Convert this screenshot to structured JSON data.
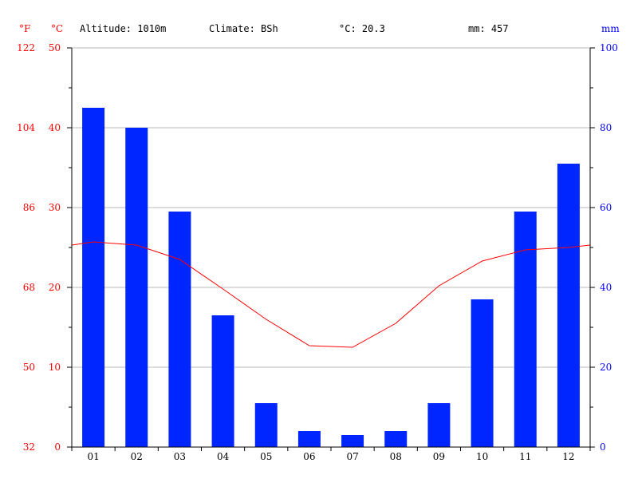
{
  "header": {
    "altitude": "Altitude: 1010m",
    "climate": "Climate: BSh",
    "mean_temp": "°C: 20.3",
    "precip": "mm: 457"
  },
  "units": {
    "fahrenheit": "°F",
    "celsius": "°C",
    "mm": "mm"
  },
  "colors": {
    "temp": "#ff0000",
    "precip": "#0000ff",
    "bar": "#0026ff",
    "grid": "#bbbbbb",
    "axis": "#000000"
  },
  "chart_data": {
    "type": "bar",
    "categories": [
      "01",
      "02",
      "03",
      "04",
      "05",
      "06",
      "07",
      "08",
      "09",
      "10",
      "11",
      "12"
    ],
    "series": [
      {
        "axis": "right",
        "type": "bar",
        "values": [
          85,
          80,
          59,
          33,
          11,
          4,
          3,
          4,
          11,
          37,
          59,
          71
        ]
      },
      {
        "axis": "left",
        "type": "line",
        "values": [
          25.7,
          25.3,
          23.5,
          19.8,
          16.0,
          12.7,
          12.5,
          15.5,
          20.2,
          23.3,
          24.7,
          25.0
        ]
      }
    ],
    "temperature_line_edges": {
      "start": 25.3,
      "end": 25.3
    },
    "y_left_celsius": {
      "ylim": [
        0,
        50
      ],
      "ticks": [
        "0",
        "10",
        "20",
        "30",
        "40",
        "50"
      ]
    },
    "y_left_fahrenheit": {
      "ticks": [
        "32",
        "50",
        "68",
        "86",
        "104",
        "122"
      ]
    },
    "y_right_mm": {
      "ylim": [
        0,
        100
      ],
      "ticks": [
        "0",
        "20",
        "40",
        "60",
        "80",
        "100"
      ]
    },
    "grid": true
  }
}
